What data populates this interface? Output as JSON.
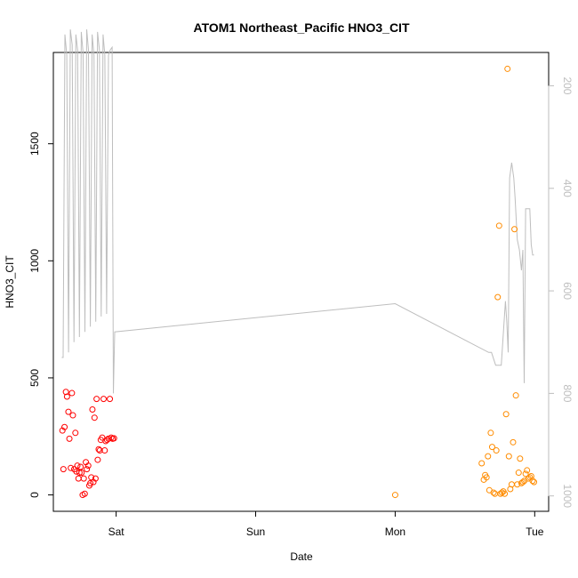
{
  "chart_data": {
    "type": "scatter",
    "title": "ATOM1 Northeast_Pacific HNO3_CIT",
    "xlabel": "Date",
    "ylabel": "HNO3_CIT",
    "x_tick_labels": [
      {
        "label": "Sat",
        "day": 1
      },
      {
        "label": "Sun",
        "day": 2
      },
      {
        "label": "Mon",
        "day": 3
      },
      {
        "label": "Tue",
        "day": 4
      }
    ],
    "xlim": [
      0.55,
      4.1
    ],
    "ylim": [
      -70,
      1890
    ],
    "y_ticks": [
      0,
      500,
      1000,
      1500
    ],
    "y2": {
      "label": "",
      "reversed": true,
      "lim": [
        1030,
        135
      ],
      "ticks": [
        200,
        400,
        600,
        800,
        1000
      ],
      "color": "#bebebe"
    },
    "grid": false,
    "legend": "none",
    "series": [
      {
        "color": "#ff0000",
        "x": [
          0.615,
          0.622,
          0.63,
          0.64,
          0.648,
          0.658,
          0.665,
          0.675,
          0.683,
          0.69,
          0.7,
          0.708,
          0.715,
          0.722,
          0.73,
          0.737,
          0.745,
          0.752,
          0.76,
          0.768,
          0.775,
          0.783,
          0.79,
          0.8,
          0.808,
          0.815,
          0.822,
          0.83,
          0.837,
          0.845,
          0.852,
          0.86,
          0.868,
          0.875,
          0.883,
          0.89,
          0.9,
          0.91,
          0.918,
          0.925,
          0.935,
          0.945,
          0.955,
          0.965,
          0.975,
          0.985
        ],
        "y": [
          275,
          110,
          290,
          440,
          420,
          355,
          240,
          115,
          435,
          340,
          110,
          265,
          100,
          125,
          70,
          95,
          120,
          95,
          0,
          70,
          5,
          140,
          110,
          125,
          40,
          50,
          75,
          365,
          55,
          330,
          70,
          410,
          150,
          195,
          190,
          235,
          245,
          410,
          190,
          230,
          235,
          240,
          410,
          245,
          240,
          242
        ]
      },
      {
        "color": "#ff8c00",
        "x": [
          3.0,
          3.62,
          3.635,
          3.645,
          3.655,
          3.665,
          3.675,
          3.685,
          3.695,
          3.705,
          3.715,
          3.725,
          3.735,
          3.745,
          3.755,
          3.765,
          3.775,
          3.785,
          3.795,
          3.805,
          3.815,
          3.825,
          3.835,
          3.845,
          3.855,
          3.865,
          3.875,
          3.885,
          3.895,
          3.905,
          3.915,
          3.925,
          3.935,
          3.945,
          3.955,
          3.965,
          3.975,
          3.985,
          3.995
        ],
        "y": [
          0,
          135,
          65,
          85,
          75,
          165,
          20,
          265,
          205,
          10,
          5,
          190,
          845,
          1150,
          5,
          10,
          15,
          5,
          345,
          1820,
          165,
          25,
          45,
          225,
          1135,
          425,
          45,
          95,
          155,
          50,
          55,
          60,
          90,
          105,
          70,
          75,
          80,
          60,
          55
        ]
      }
    ],
    "line_y2": {
      "color": "#bebebe",
      "x": [
        0.61,
        0.62,
        0.633,
        0.646,
        0.659,
        0.672,
        0.685,
        0.698,
        0.711,
        0.724,
        0.737,
        0.75,
        0.763,
        0.776,
        0.789,
        0.802,
        0.815,
        0.828,
        0.841,
        0.854,
        0.867,
        0.88,
        0.893,
        0.906,
        0.919,
        0.932,
        0.945,
        0.958,
        0.971,
        0.98,
        0.99,
        3.0,
        3.67,
        3.69,
        3.72,
        3.73,
        3.76,
        3.79,
        3.8,
        3.81,
        3.82,
        3.835,
        3.85,
        3.86,
        3.875,
        3.89,
        3.905,
        3.915,
        3.925,
        3.935,
        3.945,
        3.955,
        3.965,
        3.975,
        3.985,
        3.995
      ],
      "y": [
        730,
        730,
        100,
        140,
        720,
        90,
        120,
        700,
        100,
        130,
        690,
        95,
        135,
        680,
        90,
        130,
        670,
        100,
        140,
        660,
        95,
        130,
        650,
        100,
        140,
        645,
        140,
        130,
        125,
        800,
        680,
        625,
        720,
        720,
        745,
        745,
        745,
        620,
        660,
        720,
        380,
        350,
        380,
        420,
        500,
        520,
        560,
        520,
        780,
        440,
        440,
        440,
        440,
        510,
        530,
        530
      ]
    }
  }
}
